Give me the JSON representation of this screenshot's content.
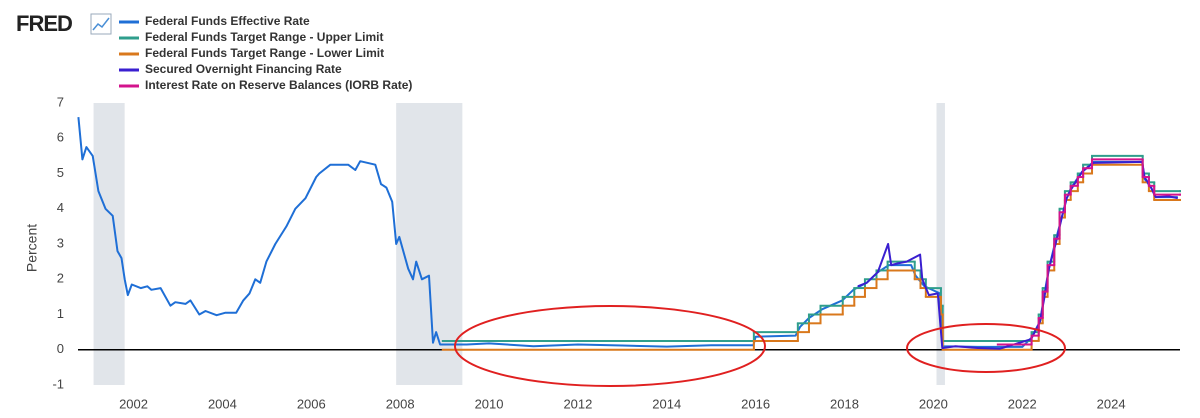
{
  "chart_data": {
    "type": "line",
    "logo": "FRED",
    "ylabel": "Percent",
    "xlim": [
      2000.75,
      2025.55
    ],
    "ylim": [
      -1,
      7
    ],
    "xticks": [
      2002,
      2004,
      2006,
      2008,
      2010,
      2012,
      2014,
      2016,
      2018,
      2020,
      2022,
      2024
    ],
    "yticks": [
      -1,
      0,
      1,
      2,
      3,
      4,
      5,
      6,
      7
    ],
    "zero_line": true,
    "recessions": [
      [
        2001.1,
        2001.8
      ],
      [
        2007.91,
        2009.4
      ],
      [
        2020.07,
        2020.26
      ]
    ],
    "series": [
      {
        "name": "Federal Funds Effective Rate",
        "color": "#1f6fd6",
        "step": false,
        "x": [
          2000.76,
          2000.85,
          2000.94,
          2001.08,
          2001.21,
          2001.37,
          2001.53,
          2001.64,
          2001.73,
          2001.8,
          2001.87,
          2001.96,
          2002.16,
          2002.31,
          2002.4,
          2002.61,
          2002.83,
          2002.94,
          2003.17,
          2003.28,
          2003.48,
          2003.62,
          2003.87,
          2004.07,
          2004.31,
          2004.47,
          2004.61,
          2004.74,
          2004.85,
          2004.99,
          2005.19,
          2005.44,
          2005.64,
          2005.87,
          2006.11,
          2006.18,
          2006.43,
          2006.83,
          2006.99,
          2007.1,
          2007.44,
          2007.57,
          2007.69,
          2007.82,
          2007.91,
          2007.98,
          2008.18,
          2008.29,
          2008.36,
          2008.49,
          2008.65,
          2008.74,
          2008.81,
          2008.9,
          2009.5,
          2010,
          2011,
          2012,
          2013,
          2014,
          2015,
          2015.95,
          2016,
          2016.9,
          2017,
          2017.2,
          2017.5,
          2017.95,
          2018.2,
          2018.5,
          2018.75,
          2019,
          2019.5,
          2019.6,
          2019.8,
          2020.15,
          2020.2,
          2021,
          2022,
          2022.2,
          2022.4,
          2022.5,
          2022.6,
          2022.75,
          2022.9,
          2023,
          2023.1,
          2023.35,
          2023.6,
          2024.7,
          2024.75,
          2024.9,
          2025,
          2025.5
        ],
        "values": [
          6.6,
          5.4,
          5.75,
          5.5,
          4.5,
          4.0,
          3.8,
          2.8,
          2.6,
          2.0,
          1.55,
          1.85,
          1.75,
          1.8,
          1.7,
          1.75,
          1.25,
          1.35,
          1.3,
          1.4,
          1.0,
          1.1,
          0.98,
          1.05,
          1.05,
          1.4,
          1.6,
          2.0,
          1.9,
          2.5,
          3.0,
          3.5,
          4.0,
          4.3,
          4.9,
          5.0,
          5.25,
          5.25,
          5.1,
          5.35,
          5.25,
          4.7,
          4.6,
          4.2,
          3.0,
          3.2,
          2.3,
          2.0,
          2.5,
          2.0,
          2.1,
          0.2,
          0.5,
          0.15,
          0.15,
          0.18,
          0.1,
          0.15,
          0.12,
          0.09,
          0.13,
          0.13,
          0.37,
          0.4,
          0.65,
          0.9,
          1.15,
          1.4,
          1.7,
          1.9,
          2.2,
          2.4,
          2.4,
          2.1,
          1.8,
          1.6,
          0.1,
          0.08,
          0.08,
          0.33,
          0.8,
          1.6,
          2.3,
          3.1,
          3.8,
          4.3,
          4.6,
          5.05,
          5.33,
          5.33,
          4.85,
          4.6,
          4.33,
          4.33
        ]
      },
      {
        "name": "Federal Funds Target Range - Upper Limit",
        "color": "#2f9e8c",
        "step": true,
        "x": [
          2008.96,
          2015.96,
          2016.95,
          2017.2,
          2017.46,
          2017.96,
          2018.22,
          2018.46,
          2018.72,
          2018.97,
          2019.58,
          2019.71,
          2019.83,
          2020.17,
          2020.21,
          2022.21,
          2022.37,
          2022.46,
          2022.57,
          2022.72,
          2022.84,
          2022.96,
          2023.09,
          2023.25,
          2023.37,
          2023.57,
          2024.71,
          2024.85,
          2024.97,
          2025.55
        ],
        "values": [
          0.25,
          0.5,
          0.75,
          1.0,
          1.25,
          1.5,
          1.75,
          2.0,
          2.25,
          2.5,
          2.25,
          2.0,
          1.75,
          1.25,
          0.25,
          0.5,
          1.0,
          1.75,
          2.5,
          3.25,
          4.0,
          4.5,
          4.75,
          5.0,
          5.25,
          5.5,
          5.0,
          4.75,
          4.5,
          4.5
        ]
      },
      {
        "name": "Federal Funds Target Range - Lower Limit",
        "color": "#d9781c",
        "step": true,
        "x": [
          2008.96,
          2015.96,
          2016.95,
          2017.2,
          2017.46,
          2017.96,
          2018.22,
          2018.46,
          2018.72,
          2018.97,
          2019.58,
          2019.71,
          2019.83,
          2020.17,
          2020.21,
          2022.21,
          2022.37,
          2022.46,
          2022.57,
          2022.72,
          2022.84,
          2022.96,
          2023.09,
          2023.25,
          2023.37,
          2023.57,
          2024.71,
          2024.85,
          2024.97,
          2025.55
        ],
        "values": [
          0,
          0.25,
          0.5,
          0.75,
          1.0,
          1.25,
          1.5,
          1.75,
          2.0,
          2.25,
          2.0,
          1.75,
          1.5,
          1.0,
          0,
          0.25,
          0.75,
          1.5,
          2.25,
          3.0,
          3.75,
          4.25,
          4.5,
          4.75,
          5.0,
          5.25,
          4.75,
          4.5,
          4.25,
          4.25
        ]
      },
      {
        "name": "Secured Overnight Financing Rate",
        "color": "#3a1fd0",
        "step": false,
        "x": [
          2018.3,
          2018.5,
          2018.75,
          2018.98,
          2019.05,
          2019.2,
          2019.4,
          2019.7,
          2019.75,
          2019.9,
          2020.1,
          2020.2,
          2020.5,
          2021,
          2021.5,
          2022.2,
          2022.4,
          2022.5,
          2022.6,
          2022.75,
          2022.9,
          2023,
          2023.1,
          2023.35,
          2023.6,
          2024.7,
          2024.75,
          2024.9,
          2025,
          2025.3,
          2025.5
        ],
        "values": [
          1.8,
          1.9,
          2.2,
          3.0,
          2.4,
          2.45,
          2.5,
          2.7,
          2.0,
          1.55,
          1.6,
          0.05,
          0.1,
          0.05,
          0.03,
          0.3,
          0.8,
          1.5,
          2.3,
          3.0,
          3.8,
          4.3,
          4.55,
          5.05,
          5.3,
          5.33,
          4.9,
          4.6,
          4.33,
          4.35,
          4.3
        ]
      },
      {
        "name": "Interest Rate on Reserve Balances (IORB Rate)",
        "color": "#d3138c",
        "step": true,
        "x": [
          2021.45,
          2022.21,
          2022.37,
          2022.46,
          2022.57,
          2022.72,
          2022.84,
          2022.96,
          2023.09,
          2023.25,
          2023.37,
          2023.57,
          2024.71,
          2024.85,
          2024.97,
          2025.55
        ],
        "values": [
          0.15,
          0.4,
          0.9,
          1.65,
          2.4,
          3.15,
          3.9,
          4.4,
          4.65,
          4.9,
          5.15,
          5.4,
          4.9,
          4.65,
          4.4,
          4.4
        ]
      }
    ]
  }
}
